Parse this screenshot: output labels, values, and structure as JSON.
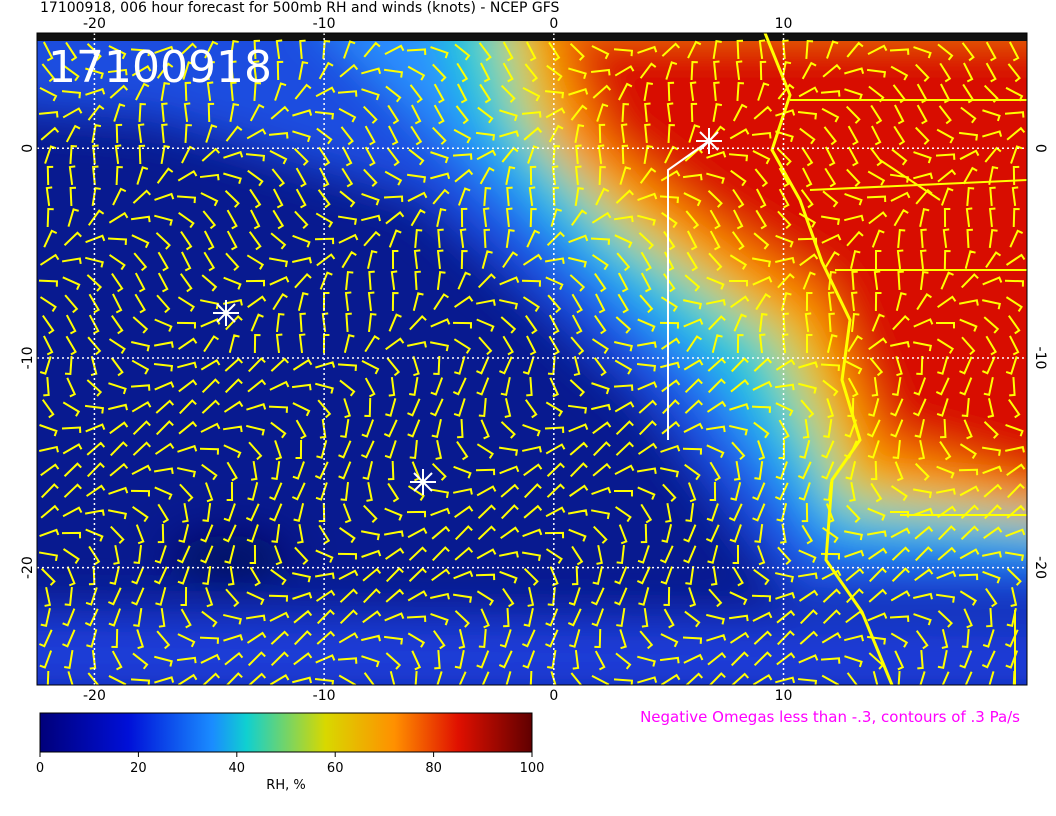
{
  "header": {
    "title": "17100918, 006 hour forecast for 500mb RH and winds (knots) - NCEP GFS"
  },
  "map": {
    "stamp": "17100918",
    "xlim": [
      -22.5,
      20.6
    ],
    "ylim": [
      -25.6,
      5.5
    ],
    "xticks": [
      -20,
      -10,
      0,
      10
    ],
    "yticks": [
      0,
      -10,
      -20
    ]
  },
  "colorbar": {
    "label": "RH, %",
    "lim": [
      0,
      100
    ],
    "ticks": [
      0,
      20,
      40,
      60,
      80,
      100
    ]
  },
  "note": "Negative Omegas less than -.3, contours of .3 Pa/s"
}
